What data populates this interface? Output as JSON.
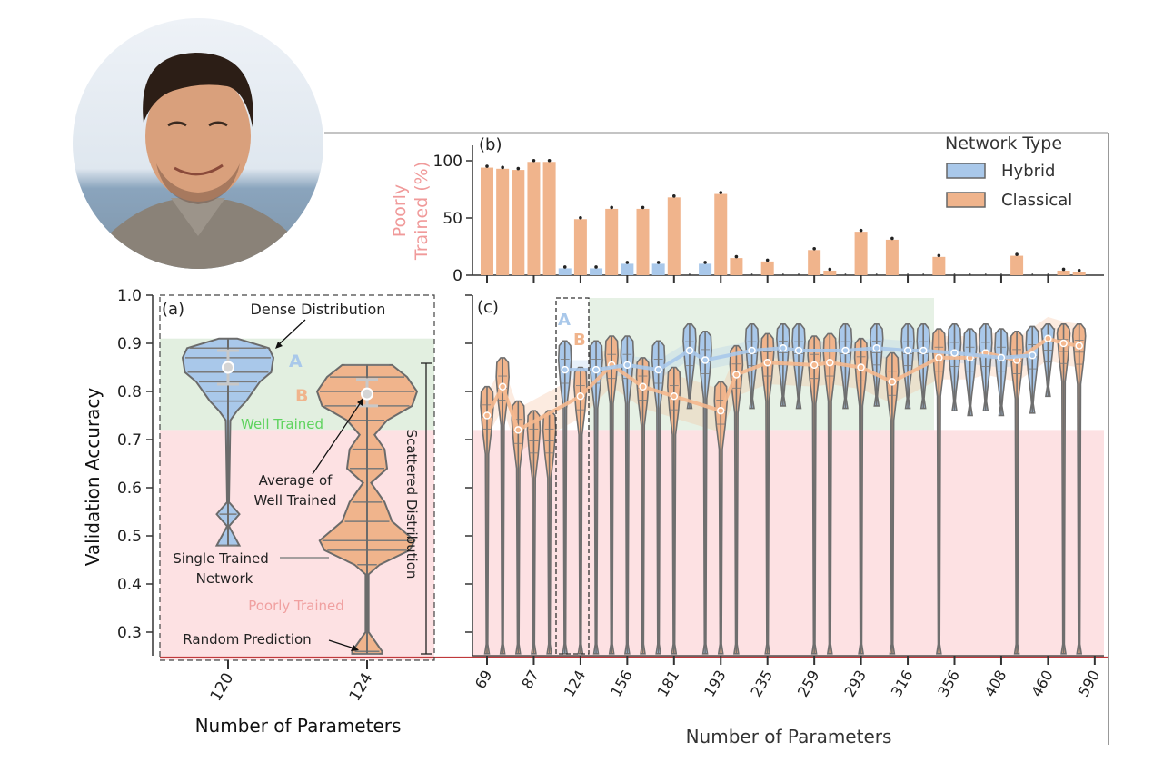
{
  "figure": {
    "photo": {
      "subject": "portrait-of-man-smiling"
    },
    "panels": {
      "a": {
        "label": "(a)"
      },
      "b": {
        "label": "(b)"
      },
      "c": {
        "label": "(c)"
      }
    }
  },
  "chart_data": [
    {
      "id": "b",
      "type": "bar",
      "title": "",
      "panel_label": "(b)",
      "ylabel": "Poorly\nTrained (%)",
      "ylabel_lines": [
        "Poorly",
        "Trained (%)"
      ],
      "ylim": [
        0,
        115
      ],
      "yticks": [
        0,
        50,
        100
      ],
      "ytick_labels": [
        "0",
        "50",
        "100"
      ],
      "legend": {
        "title": "Network Type",
        "entries": [
          "Hybrid",
          "Classical"
        ],
        "placement": "top-right"
      },
      "colors": {
        "Hybrid": "#a9c8ea",
        "Classical": "#f0b48c"
      },
      "slots": [
        {
          "series": "Classical",
          "value": 94
        },
        {
          "series": "Classical",
          "value": 93
        },
        {
          "series": "Classical",
          "value": 92
        },
        {
          "series": "Classical",
          "value": 99
        },
        {
          "series": "Classical",
          "value": 99
        },
        {
          "series": "Hybrid",
          "value": 6
        },
        {
          "series": "Classical",
          "value": 49
        },
        {
          "series": "Hybrid",
          "value": 6
        },
        {
          "series": "Classical",
          "value": 58
        },
        {
          "series": "Hybrid",
          "value": 10
        },
        {
          "series": "Classical",
          "value": 58
        },
        {
          "series": "Hybrid",
          "value": 10
        },
        {
          "series": "Classical",
          "value": 68
        },
        {
          "series": "Hybrid",
          "value": 0
        },
        {
          "series": "Hybrid",
          "value": 10
        },
        {
          "series": "Classical",
          "value": 71
        },
        {
          "series": "Classical",
          "value": 15
        },
        {
          "series": "Hybrid",
          "value": 0
        },
        {
          "series": "Classical",
          "value": 12
        },
        {
          "series": "Hybrid",
          "value": 0
        },
        {
          "series": "Hybrid",
          "value": 0
        },
        {
          "series": "Classical",
          "value": 22
        },
        {
          "series": "Classical",
          "value": 4
        },
        {
          "series": "Hybrid",
          "value": 0
        },
        {
          "series": "Classical",
          "value": 38
        },
        {
          "series": "Hybrid",
          "value": 0
        },
        {
          "series": "Classical",
          "value": 31
        },
        {
          "series": "Hybrid",
          "value": 0
        },
        {
          "series": "Hybrid",
          "value": 0
        },
        {
          "series": "Classical",
          "value": 16
        },
        {
          "series": "Hybrid",
          "value": 0
        },
        {
          "series": "Hybrid",
          "value": 0
        },
        {
          "series": "Hybrid",
          "value": 0
        },
        {
          "series": "Hybrid",
          "value": 0
        },
        {
          "series": "Classical",
          "value": 17
        },
        {
          "series": "Hybrid",
          "value": 0
        },
        {
          "series": "Hybrid",
          "value": 0
        },
        {
          "series": "Classical",
          "value": 4
        },
        {
          "series": "Classical",
          "value": 3
        }
      ]
    },
    {
      "id": "a",
      "type": "violin",
      "panel_label": "(a)",
      "xlabel": "Number of Parameters",
      "ylabel": "Validation Accuracy",
      "ylim": [
        0.24,
        1.0
      ],
      "yticks": [
        0.3,
        0.4,
        0.5,
        0.6,
        0.7,
        0.8,
        0.9,
        1.0
      ],
      "ytick_labels": [
        "0.3",
        "0.4",
        "0.5",
        "0.6",
        "0.7",
        "0.8",
        "0.9",
        "1.0"
      ],
      "categories": [
        "120",
        "124"
      ],
      "regions": {
        "well_trained": {
          "label": "Well Trained",
          "range": [
            0.72,
            0.91
          ],
          "color": "#e2efe0",
          "label_color": "#5fd35f"
        },
        "poorly_trained": {
          "label": "Poorly Trained",
          "range": [
            0.25,
            0.72
          ],
          "color": "#fde1e3",
          "label_color": "#f0a0a0"
        }
      },
      "random_prediction": 0.25,
      "violins": [
        {
          "name": "A",
          "category": "120",
          "series": "Hybrid",
          "mean": 0.85,
          "whisker": [
            0.815,
            0.885
          ],
          "shape": [
            [
              0.91,
              0.2
            ],
            [
              0.89,
              0.9
            ],
            [
              0.87,
              1.0
            ],
            [
              0.84,
              0.95
            ],
            [
              0.82,
              0.7
            ],
            [
              0.8,
              0.55
            ],
            [
              0.78,
              0.4
            ],
            [
              0.76,
              0.2
            ],
            [
              0.74,
              0.05
            ],
            [
              0.57,
              0.02
            ],
            [
              0.545,
              0.25
            ],
            [
              0.52,
              0.02
            ],
            [
              0.48,
              0.25
            ]
          ]
        },
        {
          "name": "B",
          "category": "124",
          "series": "Classical",
          "mean": 0.795,
          "whisker": [
            0.77,
            0.825
          ],
          "shape": [
            [
              0.855,
              0.5
            ],
            [
              0.83,
              0.8
            ],
            [
              0.8,
              1.0
            ],
            [
              0.77,
              0.9
            ],
            [
              0.74,
              0.4
            ],
            [
              0.71,
              0.15
            ],
            [
              0.68,
              0.35
            ],
            [
              0.64,
              0.4
            ],
            [
              0.61,
              0.08
            ],
            [
              0.57,
              0.35
            ],
            [
              0.53,
              0.5
            ],
            [
              0.49,
              0.95
            ],
            [
              0.47,
              0.85
            ],
            [
              0.44,
              0.25
            ],
            [
              0.42,
              0.03
            ],
            [
              0.3,
              0.03
            ],
            [
              0.26,
              0.3
            ],
            [
              0.255,
              0.3
            ]
          ]
        }
      ],
      "annotations": [
        {
          "text": "Dense Distribution"
        },
        {
          "text": "A"
        },
        {
          "text": "B"
        },
        {
          "text": "Average of\nWell Trained",
          "lines": [
            "Average of",
            "Well Trained"
          ]
        },
        {
          "text": "Single Trained\nNetwork",
          "lines": [
            "Single Trained",
            "Network"
          ]
        },
        {
          "text": "Random Prediction"
        },
        {
          "text": "Scattered Distribution"
        }
      ]
    },
    {
      "id": "c",
      "type": "violin",
      "panel_label": "(c)",
      "xlabel": "Number of Parameters",
      "ylim": [
        0.24,
        1.0
      ],
      "yticks": [
        0.3,
        0.4,
        0.5,
        0.6,
        0.7,
        0.8,
        0.9,
        1.0
      ],
      "xtick_labels": [
        "69",
        "87",
        "124",
        "156",
        "181",
        "193",
        "235",
        "259",
        "293",
        "316",
        "356",
        "408",
        "460",
        "590"
      ],
      "series_lines": [
        {
          "name": "Classical",
          "color": "#f5b88e",
          "points": [
            [
              0,
              0.75
            ],
            [
              1,
              0.81
            ],
            [
              2,
              0.72
            ],
            [
              6,
              0.79
            ],
            [
              8,
              0.855
            ],
            [
              10,
              0.81
            ],
            [
              12,
              0.79
            ],
            [
              15,
              0.76
            ],
            [
              16,
              0.835
            ],
            [
              18,
              0.86
            ],
            [
              21,
              0.855
            ],
            [
              22,
              0.86
            ],
            [
              24,
              0.85
            ],
            [
              26,
              0.82
            ],
            [
              29,
              0.87
            ],
            [
              31,
              0.87
            ],
            [
              32,
              0.88
            ],
            [
              34,
              0.865
            ],
            [
              36,
              0.91
            ],
            [
              37,
              0.9
            ],
            [
              38,
              0.895
            ]
          ]
        },
        {
          "name": "Hybrid",
          "color": "#a9c8ea",
          "points": [
            [
              5,
              0.845
            ],
            [
              7,
              0.845
            ],
            [
              9,
              0.855
            ],
            [
              11,
              0.845
            ],
            [
              13,
              0.885
            ],
            [
              14,
              0.865
            ],
            [
              17,
              0.885
            ],
            [
              19,
              0.89
            ],
            [
              20,
              0.885
            ],
            [
              23,
              0.885
            ],
            [
              25,
              0.89
            ],
            [
              27,
              0.885
            ],
            [
              28,
              0.885
            ],
            [
              30,
              0.88
            ],
            [
              33,
              0.87
            ],
            [
              35,
              0.875
            ]
          ]
        }
      ],
      "annotations": [
        {
          "text": "A"
        },
        {
          "text": "B"
        }
      ]
    }
  ]
}
